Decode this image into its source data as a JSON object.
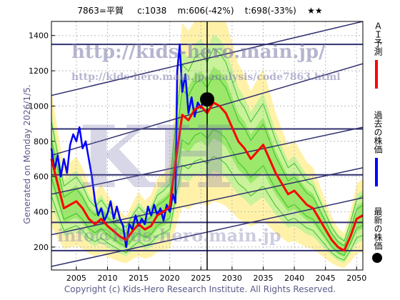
{
  "header": {
    "code_name": "7863=平賀",
    "current": "c:1038",
    "min": "m:606(-42%)",
    "target": "t:698(-33%)",
    "stars": "★★"
  },
  "side_label": "Generated on Monday 2026/1/5.",
  "footer": "Copyright (c) Kids-Hero Research Institute. All Rights Reserved.",
  "watermarks": {
    "url_main": "http://kids-hero.main.jp/",
    "url_analysis": "http://kids-hero.main.jp/analysis/code7863.html",
    "brand": "KH",
    "email": "info@kids-hero.main.jp"
  },
  "legend": [
    {
      "label": "ＡＩ予測",
      "color": "#ff0000"
    },
    {
      "label": "過去の株価",
      "color": "#0000ff"
    },
    {
      "label": "最新の株価",
      "color": "#000000"
    }
  ],
  "chart_data": {
    "type": "line",
    "x_ticks": [
      2005,
      2010,
      2015,
      2020,
      2025,
      2030,
      2035,
      2040,
      2045,
      2050
    ],
    "y_ticks": [
      200,
      400,
      600,
      800,
      1000,
      1200,
      1400
    ],
    "xlim": [
      2001,
      2051
    ],
    "ylim": [
      70,
      1480
    ],
    "grid": true,
    "series": [
      {
        "kind": "past",
        "color": "#0000ff",
        "points": [
          [
            2001,
            760
          ],
          [
            2001.5,
            640
          ],
          [
            2002,
            720
          ],
          [
            2002.5,
            600
          ],
          [
            2003,
            700
          ],
          [
            2003.5,
            620
          ],
          [
            2004,
            780
          ],
          [
            2004.5,
            840
          ],
          [
            2005,
            800
          ],
          [
            2005.5,
            880
          ],
          [
            2006,
            760
          ],
          [
            2006.5,
            800
          ],
          [
            2007,
            700
          ],
          [
            2007.5,
            600
          ],
          [
            2008,
            460
          ],
          [
            2008.5,
            380
          ],
          [
            2009,
            420
          ],
          [
            2009.5,
            350
          ],
          [
            2010,
            390
          ],
          [
            2010.5,
            460
          ],
          [
            2011,
            360
          ],
          [
            2011.5,
            430
          ],
          [
            2012,
            360
          ],
          [
            2012.5,
            320
          ],
          [
            2013,
            200
          ],
          [
            2013.5,
            330
          ],
          [
            2014,
            300
          ],
          [
            2014.5,
            380
          ],
          [
            2015,
            320
          ],
          [
            2015.5,
            360
          ],
          [
            2016,
            330
          ],
          [
            2016.5,
            430
          ],
          [
            2017,
            380
          ],
          [
            2017.5,
            440
          ],
          [
            2018,
            380
          ],
          [
            2018.5,
            420
          ],
          [
            2019,
            350
          ],
          [
            2019.5,
            440
          ],
          [
            2020,
            400
          ],
          [
            2020.5,
            500
          ],
          [
            2020.9,
            450
          ],
          [
            2021.2,
            1200
          ],
          [
            2021.6,
            1350
          ],
          [
            2022,
            1080
          ],
          [
            2022.5,
            1180
          ],
          [
            2023,
            960
          ],
          [
            2023.5,
            1050
          ],
          [
            2024,
            940
          ],
          [
            2024.5,
            1020
          ],
          [
            2025,
            990
          ],
          [
            2025.5,
            1040
          ]
        ]
      },
      {
        "kind": "ai_forecast",
        "color": "#ff0000",
        "points": [
          [
            2001,
            700
          ],
          [
            2002,
            560
          ],
          [
            2003,
            420
          ],
          [
            2004,
            440
          ],
          [
            2005,
            460
          ],
          [
            2006,
            420
          ],
          [
            2007,
            360
          ],
          [
            2008,
            330
          ],
          [
            2009,
            360
          ],
          [
            2010,
            320
          ],
          [
            2011,
            290
          ],
          [
            2012,
            260
          ],
          [
            2013,
            240
          ],
          [
            2014,
            290
          ],
          [
            2015,
            330
          ],
          [
            2016,
            300
          ],
          [
            2017,
            320
          ],
          [
            2018,
            380
          ],
          [
            2019,
            400
          ],
          [
            2020,
            430
          ],
          [
            2021,
            700
          ],
          [
            2022,
            950
          ],
          [
            2023,
            920
          ],
          [
            2024,
            980
          ],
          [
            2025,
            1000
          ],
          [
            2026,
            960
          ],
          [
            2027,
            1020
          ],
          [
            2028,
            1000
          ],
          [
            2029,
            960
          ],
          [
            2030,
            880
          ],
          [
            2031,
            800
          ],
          [
            2032,
            760
          ],
          [
            2033,
            700
          ],
          [
            2034,
            740
          ],
          [
            2035,
            780
          ],
          [
            2036,
            700
          ],
          [
            2037,
            620
          ],
          [
            2038,
            560
          ],
          [
            2039,
            500
          ],
          [
            2040,
            520
          ],
          [
            2041,
            480
          ],
          [
            2042,
            440
          ],
          [
            2043,
            420
          ],
          [
            2044,
            360
          ],
          [
            2045,
            300
          ],
          [
            2046,
            240
          ],
          [
            2047,
            200
          ],
          [
            2048,
            180
          ],
          [
            2049,
            260
          ],
          [
            2050,
            360
          ],
          [
            2051,
            380
          ]
        ]
      },
      {
        "kind": "latest",
        "color": "#000000",
        "points": [
          [
            2026,
            1038
          ]
        ]
      }
    ]
  }
}
